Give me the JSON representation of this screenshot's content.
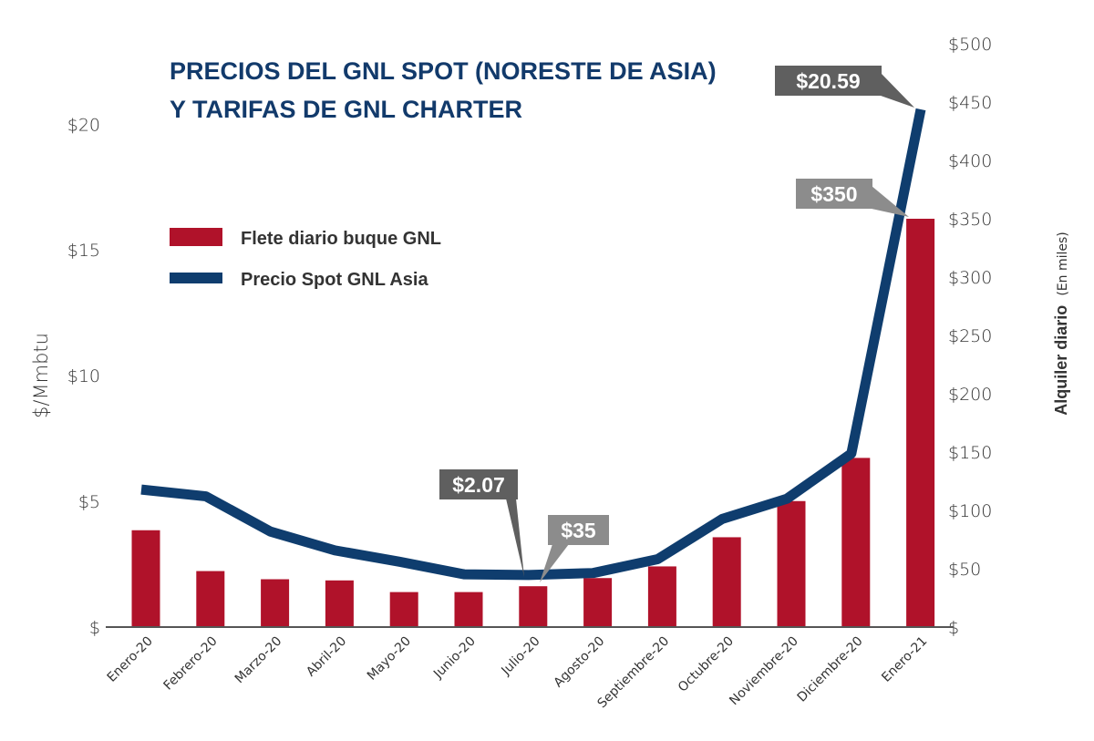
{
  "chart_data": {
    "type": "bar+line",
    "title_lines": [
      "PRECIOS DEL GNL SPOT (NORESTE DE ASIA)",
      "Y TARIFAS DE GNL CHARTER"
    ],
    "categories": [
      "Enero-20",
      "Febrero-20",
      "Marzo-20",
      "Abril-20",
      "Mayo-20",
      "Junio-20",
      "Julio-20",
      "Agosto-20",
      "Septiembre-20",
      "Octubre-20",
      "Noviembre-20",
      "Diciembre-20",
      "Enero-21"
    ],
    "series": [
      {
        "name": "Flete diario buque GNL",
        "type": "bar",
        "axis": "right",
        "color": "#b0122a",
        "values": [
          83,
          48,
          41,
          40,
          30,
          30,
          35,
          42,
          52,
          77,
          108,
          145,
          350
        ]
      },
      {
        "name": "Precio Spot GNL Asia",
        "type": "line",
        "axis": "left",
        "color": "#0f3d6e",
        "values": [
          5.47,
          5.2,
          3.8,
          3.05,
          2.6,
          2.1,
          2.07,
          2.15,
          2.7,
          4.3,
          5.1,
          6.9,
          20.59
        ]
      }
    ],
    "left_axis": {
      "label": "$/Mmbtu",
      "ylim": [
        0,
        23.2
      ],
      "ticks": [
        0,
        5,
        10,
        15,
        20
      ],
      "tick_labels": [
        "$",
        "$5",
        "$10",
        "$15",
        "$20"
      ]
    },
    "right_axis": {
      "label": "Alquiler diario",
      "label_suffix": "(En miles)",
      "ylim": [
        0,
        500
      ],
      "ticks": [
        0,
        50,
        100,
        150,
        200,
        250,
        300,
        350,
        400,
        450,
        500
      ],
      "tick_labels": [
        "$",
        "$50",
        "$100",
        "$150",
        "$200",
        "$250",
        "$300",
        "$350",
        "$400",
        "$450",
        "$500"
      ]
    },
    "annotations": [
      {
        "text": "$2.07",
        "series": "Precio Spot GNL Asia",
        "category": "Julio-20",
        "color": "#5f5f5f"
      },
      {
        "text": "$35",
        "series": "Flete diario buque GNL",
        "category": "Julio-20",
        "color": "#8c8c8c"
      },
      {
        "text": "$20.59",
        "series": "Precio Spot GNL Asia",
        "category": "Enero-21",
        "color": "#5f5f5f"
      },
      {
        "text": "$350",
        "series": "Flete diario buque GNL",
        "category": "Enero-21",
        "color": "#8c8c8c"
      }
    ],
    "legend": "upper-left",
    "grid": false
  }
}
